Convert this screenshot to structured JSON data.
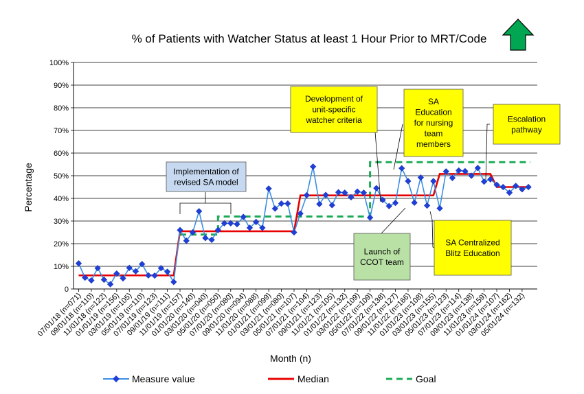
{
  "chart_data": {
    "type": "line",
    "title": "% of Patients with Watcher Status at least 1 Hour Prior to MRT/Code",
    "xlabel": "Month (n)",
    "ylabel": "Percentage",
    "ylim": [
      0,
      100
    ],
    "y_ticks": [
      "0",
      "10%",
      "20%",
      "30%",
      "40%",
      "50%",
      "60%",
      "70%",
      "80%",
      "90%",
      "100%"
    ],
    "grid": "horizontal",
    "legend_position": "bottom",
    "x_tick_labels": [
      "07/01/18 (n=071)",
      "09/01/18 (n=110)",
      "11/01/18 (n=122)",
      "01/01/19 (n=156)",
      "03/01/19 (n=105)",
      "05/01/19 (n=110)",
      "07/01/19 (n=123)",
      "09/01/19 (n=111)",
      "11/01/19 (n=157)",
      "01/01/20 (n=140)",
      "03/01/20 (n=040)",
      "05/01/20 (n=050)",
      "07/01/20 (n=080)",
      "09/01/20 (n=094)",
      "11/01/20 (n=088)",
      "01/01/21 (n=099)",
      "03/01/21 (n=080)",
      "05/01/21 (n=107)",
      "07/01/21 (n=104)",
      "09/01/21 (n=123)",
      "11/01/21 (n=105)",
      "01/01/22 (n=132)",
      "03/01/22 (n=109)",
      "05/01/22 (n=109)",
      "07/01/22 (n=138)",
      "09/01/22 (n=127)",
      "11/01/22 (n=166)",
      "01/01/23 (n=108)",
      "03/01/23 (n=155)",
      "05/01/23 (n=123)",
      "07/01/23 (n=114)",
      "09/01/23 (n=138)",
      "11/01/23 (n=159)",
      "01/01/24 (n=107)",
      "03/01/24 (n=162)",
      "05/01/24 (n=132)"
    ],
    "series": [
      {
        "name": "Measure value",
        "color": "#1f6fd1",
        "marker": "diamond",
        "values": [
          11.3,
          5,
          3.8,
          9.2,
          4.1,
          2.1,
          6.8,
          4.7,
          9.3,
          7.8,
          11,
          6,
          5.9,
          9.2,
          7.6,
          3.1,
          26,
          21.3,
          25,
          34.3,
          22.5,
          21.7,
          26,
          29,
          29,
          28.6,
          31.8,
          27,
          29.6,
          27,
          44.3,
          35.5,
          37.7,
          37.7,
          25,
          33.3,
          41.4,
          54,
          37.5,
          41.5,
          37,
          42.7,
          42.5,
          40.5,
          43,
          42.5,
          31.5,
          44.5,
          39.3,
          36.6,
          38,
          53.3,
          47.6,
          38.1,
          49.2,
          36.8,
          47.6,
          35.6,
          51.9,
          49,
          52.3,
          52,
          50,
          53.4,
          47.4,
          48.4,
          46,
          45,
          42.5,
          45.5,
          44,
          45
        ]
      },
      {
        "name": "Median",
        "color": "#e80000",
        "segments": [
          {
            "from": 0,
            "to": 15,
            "value": 6
          },
          {
            "from": 16,
            "to": 34,
            "value": 25.5
          },
          {
            "from": 35,
            "to": 56,
            "value": 41.3
          },
          {
            "from": 57,
            "to": 65,
            "value": 50.8
          },
          {
            "from": 66,
            "to": 71,
            "value": 45
          }
        ]
      },
      {
        "name": "Goal",
        "color": "#1aaa55",
        "style": "dashed",
        "segments": [
          {
            "from": 16,
            "to": 22,
            "value": 24
          },
          {
            "from": 22,
            "to": 46,
            "value": 32
          },
          {
            "from": 46,
            "to": 80,
            "value": 56
          }
        ]
      }
    ],
    "annotations": [
      {
        "text": [
          "Implementation of",
          "revised SA model"
        ],
        "fill": "#c6d9f1"
      },
      {
        "text": [
          "Development of",
          "unit-specific",
          "watcher criteria"
        ],
        "fill": "#ffff00"
      },
      {
        "text": [
          "SA",
          "Education",
          "for nursing",
          "team",
          "members"
        ],
        "fill": "#ffff00"
      },
      {
        "text": [
          "Escalation",
          "pathway"
        ],
        "fill": "#ffff00"
      },
      {
        "text": [
          "Launch of",
          "CCOT team"
        ],
        "fill": "#b9e0a5"
      },
      {
        "text": [
          "SA Centralized",
          "Blitz Education"
        ],
        "fill": "#ffff00"
      }
    ],
    "trend_indicator": {
      "icon": "up-arrow-icon",
      "color": "#00a651"
    }
  }
}
